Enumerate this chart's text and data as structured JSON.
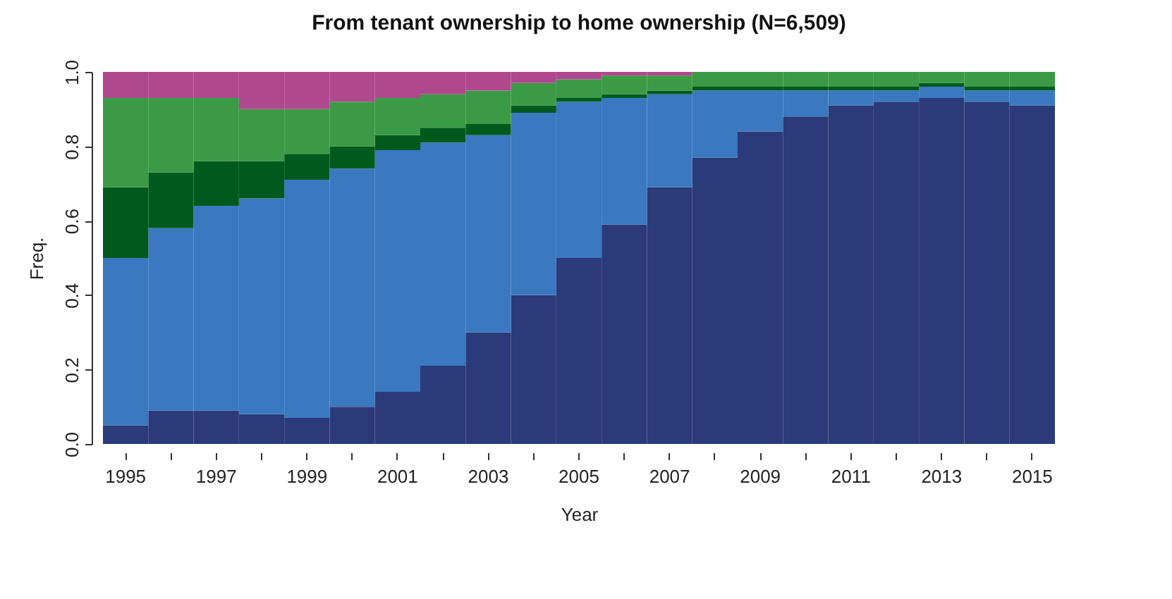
{
  "chart_data": {
    "type": "bar",
    "title": "From tenant ownership to home ownership (N=6,509)",
    "xlabel": "Year",
    "ylabel": "Freq.",
    "stacked": true,
    "categories": [
      "1995",
      null,
      "1997",
      null,
      "1999",
      null,
      "2001",
      null,
      "2003",
      null,
      "2005",
      null,
      "2007",
      null,
      "2009",
      null,
      "2011",
      null,
      "2013",
      null,
      "2015"
    ],
    "series": [
      {
        "color": "#2b3a78",
        "values": [
          0.05,
          0.09,
          0.09,
          0.08,
          0.07,
          0.1,
          0.14,
          0.21,
          0.3,
          0.4,
          0.5,
          0.59,
          0.69,
          0.77,
          0.84,
          0.88,
          0.91,
          0.92,
          0.93,
          0.92,
          0.91
        ]
      },
      {
        "color": "#3a78c0",
        "values": [
          0.45,
          0.49,
          0.55,
          0.58,
          0.64,
          0.64,
          0.65,
          0.6,
          0.53,
          0.49,
          0.42,
          0.34,
          0.25,
          0.18,
          0.11,
          0.07,
          0.04,
          0.03,
          0.03,
          0.03,
          0.04
        ]
      },
      {
        "color": "#005a1e",
        "values": [
          0.19,
          0.15,
          0.12,
          0.1,
          0.07,
          0.06,
          0.04,
          0.04,
          0.03,
          0.02,
          0.01,
          0.01,
          0.01,
          0.01,
          0.01,
          0.01,
          0.01,
          0.01,
          0.01,
          0.01,
          0.01
        ]
      },
      {
        "color": "#3a9a45",
        "values": [
          0.24,
          0.2,
          0.17,
          0.14,
          0.12,
          0.12,
          0.1,
          0.09,
          0.09,
          0.06,
          0.05,
          0.05,
          0.04,
          0.04,
          0.04,
          0.04,
          0.04,
          0.04,
          0.03,
          0.04,
          0.04
        ]
      },
      {
        "color": "#b0488e",
        "values": [
          0.07,
          0.07,
          0.07,
          0.1,
          0.1,
          0.08,
          0.07,
          0.06,
          0.05,
          0.03,
          0.02,
          0.01,
          0.01,
          0,
          0,
          0,
          0,
          0,
          0,
          0,
          0
        ]
      }
    ],
    "ylim": [
      0,
      1
    ],
    "yticks": [
      {
        "value": 0,
        "label": "0.0"
      },
      0.2,
      0.4,
      0.6,
      0.8,
      {
        "value": 1,
        "label": "1.0"
      }
    ],
    "grid": false,
    "legend": false
  }
}
